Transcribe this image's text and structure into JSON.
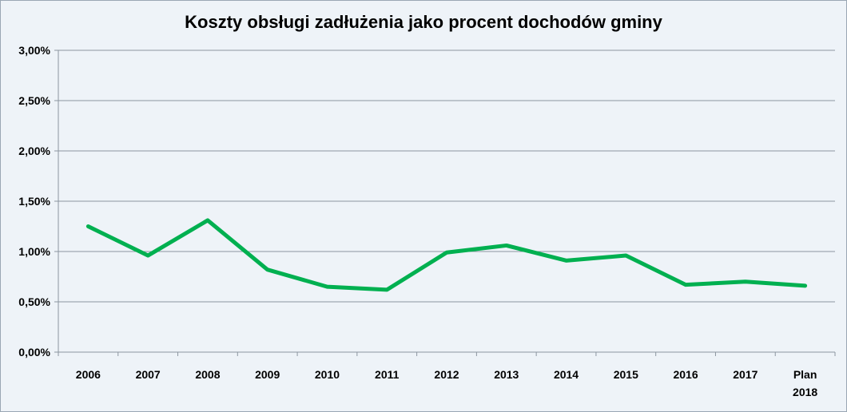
{
  "chart_data": {
    "type": "line",
    "title": "Koszty obsługi zadłużenia jako procent dochodów gminy",
    "categories": [
      "2006",
      "2007",
      "2008",
      "2009",
      "2010",
      "2011",
      "2012",
      "2013",
      "2014",
      "2015",
      "2016",
      "2017",
      "Plan 2018"
    ],
    "series": [
      {
        "values": [
          1.25,
          0.96,
          1.31,
          0.82,
          0.65,
          0.62,
          0.99,
          1.06,
          0.91,
          0.96,
          0.67,
          0.7,
          0.66
        ],
        "color": "#00b050"
      }
    ],
    "y_ticks": [
      "0,00%",
      "0,50%",
      "1,00%",
      "1,50%",
      "2,00%",
      "2,50%",
      "3,00%"
    ],
    "ylim": [
      0,
      3
    ],
    "ylabel": "",
    "xlabel": "",
    "grid": true,
    "legend": "none"
  }
}
